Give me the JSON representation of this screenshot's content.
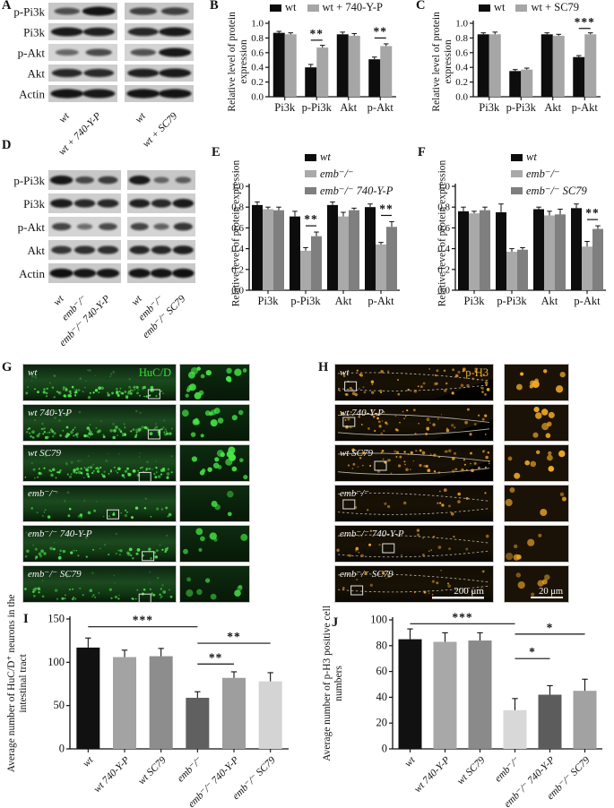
{
  "panels": {
    "A": {
      "letter": "A",
      "row_labels": [
        "p-Pi3k",
        "Pi3k",
        "p-Akt",
        "Akt",
        "Actin"
      ],
      "strips": [
        {
          "lane_labels": [
            "wt",
            "wt + 740-Y-P"
          ],
          "bands": [
            [
              0.5,
              0.95
            ],
            [
              0.9,
              0.85
            ],
            [
              0.35,
              0.55
            ],
            [
              0.8,
              0.78
            ],
            [
              0.95,
              0.92
            ]
          ]
        },
        {
          "lane_labels": [
            "wt",
            "wt + SC79"
          ],
          "bands": [
            [
              0.6,
              0.62
            ],
            [
              0.8,
              0.9
            ],
            [
              0.5,
              0.92
            ],
            [
              0.85,
              0.9
            ],
            [
              0.95,
              0.95
            ]
          ]
        }
      ]
    },
    "B": {
      "letter": "B"
    },
    "C": {
      "letter": "C"
    },
    "D": {
      "letter": "D",
      "row_labels": [
        "p-Pi3k",
        "Pi3k",
        "p-Akt",
        "Akt",
        "Actin"
      ],
      "strips": [
        {
          "lane_labels": [
            "wt",
            "emb⁻/⁻",
            "emb⁻/⁻ 740-Y-P"
          ],
          "bands": [
            [
              0.92,
              0.55,
              0.65
            ],
            [
              0.88,
              0.78,
              0.8
            ],
            [
              0.6,
              0.3,
              0.55
            ],
            [
              0.7,
              0.75,
              0.75
            ],
            [
              0.97,
              0.93,
              0.93
            ]
          ]
        },
        {
          "lane_labels": [
            "wt",
            "emb⁻/⁻",
            "emb⁻/⁻ SC79"
          ],
          "bands": [
            [
              0.9,
              0.35,
              0.4
            ],
            [
              0.85,
              0.8,
              0.9
            ],
            [
              0.6,
              0.38,
              0.7
            ],
            [
              0.8,
              0.8,
              0.85
            ],
            [
              0.95,
              0.95,
              0.97
            ]
          ]
        }
      ]
    },
    "E": {
      "letter": "E"
    },
    "F": {
      "letter": "F"
    },
    "G": {
      "letter": "G",
      "marker": "HuC/D",
      "marker_color": "#35e035",
      "rows": [
        {
          "label": "wt",
          "main_dots": 85,
          "inset_dots": 16,
          "box": [
            0.82,
            0.7
          ]
        },
        {
          "label": "wt 740-Y-P",
          "main_dots": 95,
          "inset_dots": 15,
          "box": [
            0.82,
            0.7
          ]
        },
        {
          "label": "wt SC79",
          "main_dots": 90,
          "inset_dots": 16,
          "box": [
            0.76,
            0.76
          ]
        },
        {
          "label": "emb⁻/⁻",
          "main_dots": 30,
          "inset_dots": 4,
          "box": [
            0.55,
            0.68
          ]
        },
        {
          "label": "emb⁻/⁻ 740-Y-P",
          "main_dots": 45,
          "inset_dots": 7,
          "box": [
            0.78,
            0.72
          ]
        },
        {
          "label": "emb⁻/⁻ SC79",
          "main_dots": 48,
          "inset_dots": 8,
          "box": [
            0.76,
            0.78
          ]
        }
      ]
    },
    "H": {
      "letter": "H",
      "marker": "p-H3",
      "marker_color": "#eead2f",
      "scale_bar_main": "200 μm",
      "scale_bar_inset": "20 μm",
      "rows": [
        {
          "label": "wt",
          "main_dots": 60,
          "inset_dots": 9,
          "box": [
            0.06,
            0.48
          ]
        },
        {
          "label": "wt 740-Y-P",
          "main_dots": 55,
          "inset_dots": 8,
          "box": [
            0.05,
            0.35
          ]
        },
        {
          "label": "wt SC79",
          "main_dots": 65,
          "inset_dots": 9,
          "box": [
            0.25,
            0.45
          ]
        },
        {
          "label": "emb⁻/⁻",
          "main_dots": 16,
          "inset_dots": 5,
          "box": [
            0.05,
            0.4
          ]
        },
        {
          "label": "emb⁻/⁻ 740-Y-P",
          "main_dots": 24,
          "inset_dots": 6,
          "box": [
            0.3,
            0.5
          ]
        },
        {
          "label": "emb⁻/⁻ SC79",
          "main_dots": 20,
          "inset_dots": 6,
          "box": [
            0.1,
            0.55
          ]
        }
      ]
    },
    "I": {
      "letter": "I"
    },
    "J": {
      "letter": "J"
    }
  },
  "chart_data": [
    {
      "id": "B",
      "type": "bar",
      "ylabel": "Relative level of protein expression",
      "ylim": [
        0,
        1.0
      ],
      "yticks": [
        "0.0",
        "0.2",
        "0.4",
        "0.6",
        "0.8",
        "1.0"
      ],
      "categories": [
        "Pi3k",
        "p-Pi3k",
        "Akt",
        "p-Akt"
      ],
      "series": [
        {
          "name": "wt",
          "color": "#0d0d0d",
          "values": [
            0.87,
            0.4,
            0.85,
            0.51
          ],
          "errors": [
            0.02,
            0.04,
            0.03,
            0.03
          ]
        },
        {
          "name": "wt + 740-Y-P",
          "color": "#a6a6a6",
          "values": [
            0.85,
            0.67,
            0.83,
            0.69
          ],
          "errors": [
            0.02,
            0.03,
            0.03,
            0.03
          ]
        }
      ],
      "significance": [
        {
          "category": 1,
          "bars": [
            0,
            1
          ],
          "label": "**",
          "y": 0.77
        },
        {
          "category": 3,
          "bars": [
            0,
            1
          ],
          "label": "**",
          "y": 0.8
        }
      ],
      "legend": {
        "position": "top",
        "italic": false
      }
    },
    {
      "id": "C",
      "type": "bar",
      "ylabel": "Relative level of protein expression",
      "ylim": [
        0,
        1.0
      ],
      "yticks": [
        "0.0",
        "0.2",
        "0.4",
        "0.6",
        "0.8",
        "1.0"
      ],
      "categories": [
        "Pi3k",
        "p-Pi3k",
        "Akt",
        "p-Akt"
      ],
      "series": [
        {
          "name": "wt",
          "color": "#0d0d0d",
          "values": [
            0.85,
            0.35,
            0.85,
            0.54
          ],
          "errors": [
            0.02,
            0.02,
            0.02,
            0.02
          ]
        },
        {
          "name": "wt + SC79",
          "color": "#a6a6a6",
          "values": [
            0.85,
            0.37,
            0.83,
            0.85
          ],
          "errors": [
            0.03,
            0.02,
            0.02,
            0.02
          ]
        }
      ],
      "significance": [
        {
          "category": 3,
          "bars": [
            0,
            1
          ],
          "label": "***",
          "y": 0.93
        }
      ],
      "legend": {
        "position": "top",
        "italic": false
      }
    },
    {
      "id": "E",
      "type": "bar",
      "ylabel": "Relative level of protein expression",
      "ylim": [
        0,
        1.0
      ],
      "yticks": [
        "0.0",
        "0.2",
        "0.4",
        "0.6",
        "0.8",
        "1.0"
      ],
      "categories": [
        "Pi3k",
        "p-Pi3k",
        "Akt",
        "p-Akt"
      ],
      "series": [
        {
          "name": "wt",
          "color": "#0d0d0d",
          "values": [
            0.82,
            0.71,
            0.82,
            0.8
          ],
          "errors": [
            0.03,
            0.05,
            0.03,
            0.03
          ]
        },
        {
          "name": "emb⁻/⁻",
          "color": "#a9a9a9",
          "values": [
            0.78,
            0.38,
            0.71,
            0.44
          ],
          "errors": [
            0.02,
            0.03,
            0.04,
            0.02
          ]
        },
        {
          "name": "emb⁻/⁻ 740-Y-P",
          "color": "#7f7f7f",
          "values": [
            0.77,
            0.52,
            0.77,
            0.61
          ],
          "errors": [
            0.03,
            0.04,
            0.02,
            0.05
          ]
        }
      ],
      "significance": [
        {
          "category": 1,
          "bars": [
            1,
            2
          ],
          "label": "**",
          "y": 0.62
        },
        {
          "category": 3,
          "bars": [
            1,
            2
          ],
          "label": "**",
          "y": 0.72
        }
      ],
      "legend": {
        "position": "right",
        "italic": true
      }
    },
    {
      "id": "F",
      "type": "bar",
      "ylabel": "Relative level of  protein expression",
      "ylim": [
        0,
        1.0
      ],
      "yticks": [
        "0.0",
        "0.2",
        "0.4",
        "0.6",
        "0.8",
        "1.0"
      ],
      "categories": [
        "Pi3k",
        "p-Pi3k",
        "Akt",
        "p-Akt"
      ],
      "series": [
        {
          "name": "wt",
          "color": "#0d0d0d",
          "values": [
            0.76,
            0.75,
            0.78,
            0.79
          ],
          "errors": [
            0.04,
            0.08,
            0.02,
            0.04
          ]
        },
        {
          "name": "emb⁻/⁻",
          "color": "#a9a9a9",
          "values": [
            0.74,
            0.37,
            0.72,
            0.42
          ],
          "errors": [
            0.02,
            0.03,
            0.04,
            0.05
          ]
        },
        {
          "name": "emb⁻/⁻ SC79",
          "color": "#7f7f7f",
          "values": [
            0.77,
            0.39,
            0.73,
            0.59
          ],
          "errors": [
            0.03,
            0.02,
            0.05,
            0.03
          ]
        }
      ],
      "significance": [
        {
          "category": 3,
          "bars": [
            1,
            2
          ],
          "label": "**",
          "y": 0.68
        }
      ],
      "legend": {
        "position": "right",
        "italic": true
      }
    },
    {
      "id": "I",
      "type": "bar",
      "ylabel": "Average number of HuC/D⁺ neurons in the intestinal tract",
      "ylim": [
        0,
        150
      ],
      "yticks": [
        "0",
        "50",
        "100",
        "150"
      ],
      "categories": [
        "wt",
        "wt 740-Y-P",
        "wt SC79",
        "emb⁻/⁻",
        "emb⁻/⁻ 740-Y-P",
        "emb⁻/⁻ SC79"
      ],
      "values": [
        117,
        106,
        107,
        59,
        82,
        78
      ],
      "errors": [
        11,
        8,
        9,
        7,
        7,
        10
      ],
      "bar_colors": [
        "#111111",
        "#a3a3a3",
        "#8d8d8d",
        "#606060",
        "#9e9e9e",
        "#d4d4d4"
      ],
      "significance": [
        {
          "bars": [
            0,
            3
          ],
          "label": "***",
          "y": 141
        },
        {
          "bars": [
            3,
            4
          ],
          "label": "**",
          "y": 98
        },
        {
          "bars": [
            3,
            5
          ],
          "label": "**",
          "y": 122
        }
      ],
      "categories_italic": true
    },
    {
      "id": "J",
      "type": "bar",
      "ylabel": "Average number of p-H3 positive cell numbers",
      "ylim": [
        0,
        100
      ],
      "yticks": [
        "0",
        "20",
        "40",
        "60",
        "80",
        "100"
      ],
      "categories": [
        "wt",
        "wt 740-Y-P",
        "wt SC79",
        "emb⁻/⁻",
        "emb⁻/⁻ 740-Y-P",
        "emb⁻/⁻ SC79"
      ],
      "values": [
        85,
        83,
        84,
        30,
        42,
        45
      ],
      "errors": [
        8,
        7,
        6,
        9,
        7,
        9
      ],
      "bar_colors": [
        "#111111",
        "#a8a8a8",
        "#8a8a8a",
        "#d8d8d8",
        "#5c5c5c",
        "#a2a2a2"
      ],
      "significance": [
        {
          "bars": [
            0,
            3
          ],
          "label": "***",
          "y": 97
        },
        {
          "bars": [
            3,
            4
          ],
          "label": "*",
          "y": 70
        },
        {
          "bars": [
            3,
            5
          ],
          "label": "*",
          "y": 89
        }
      ],
      "categories_italic": true
    }
  ]
}
